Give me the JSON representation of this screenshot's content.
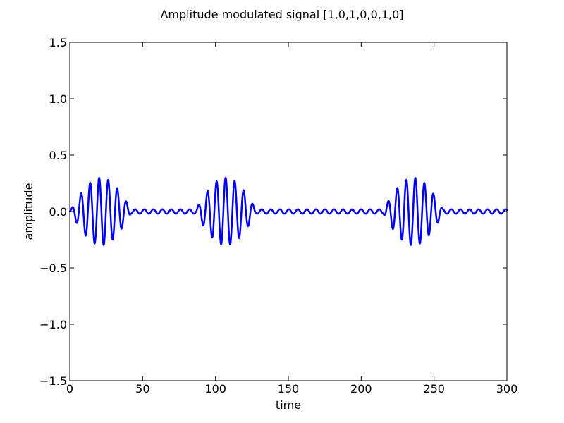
{
  "chart_data": {
    "type": "line",
    "title": "Amplitude modulated signal [1,0,1,0,0,1,0]",
    "xlabel": "time",
    "ylabel": "amplitude",
    "xlim": [
      0,
      300
    ],
    "ylim": [
      -1.5,
      1.5
    ],
    "grid": false,
    "legend": "none",
    "x_ticks": [
      0,
      50,
      100,
      150,
      200,
      250,
      300
    ],
    "x_tick_labels": [
      "0",
      "50",
      "100",
      "150",
      "200",
      "250",
      "300"
    ],
    "y_ticks": [
      -1.5,
      -1.0,
      -0.5,
      0.0,
      0.5,
      1.0,
      1.5
    ],
    "y_tick_labels": [
      "−1.5",
      "−1.0",
      "−0.5",
      "0.0",
      "0.5",
      "1.0",
      "1.5"
    ],
    "bits": [
      1,
      0,
      1,
      0,
      0,
      1,
      0
    ],
    "carrier_period": 6.2,
    "on_peak_amplitude": 0.3,
    "off_amplitude": 0.02,
    "series": [
      {
        "name": "",
        "color": "#0000ff"
      }
    ]
  }
}
